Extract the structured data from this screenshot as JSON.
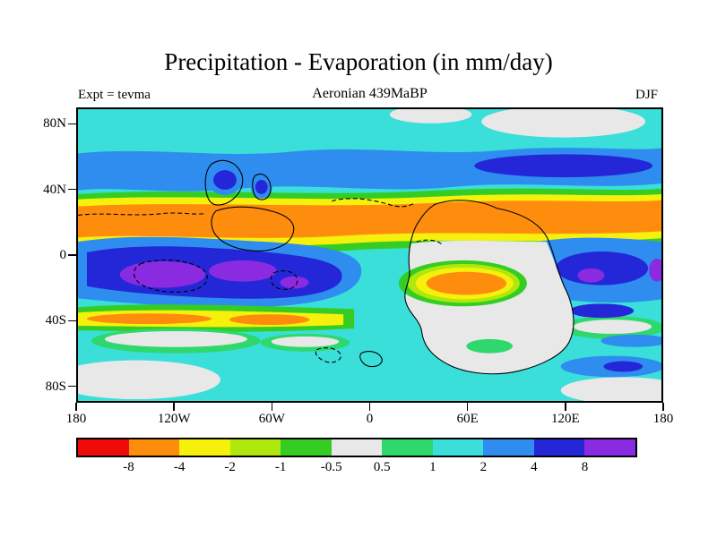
{
  "chart_data": {
    "type": "heatmap",
    "style": "filled-contour-map",
    "title": "Precipitation - Evaporation (in mm/day)",
    "header": {
      "experiment": "Expt = tevma",
      "subtitle": "Aeronian 439MaBP",
      "season": "DJF"
    },
    "map": {
      "projection": "equirectangular",
      "lon_range": [
        -180,
        180
      ],
      "lat_range": [
        -90,
        90
      ],
      "field_description": "P-E in mm/day: orange/yellow dry subtropical bands, blue/purple wet equatorial and midlatitude bands, cyan oceans, light gray continents and polar patches, black solid and dashed paleocoastlines"
    },
    "x_axis": {
      "ticks": [
        {
          "label": "180",
          "lon": -180
        },
        {
          "label": "120W",
          "lon": -120
        },
        {
          "label": "60W",
          "lon": -60
        },
        {
          "label": "0",
          "lon": 0
        },
        {
          "label": "60E",
          "lon": 60
        },
        {
          "label": "120E",
          "lon": 120
        },
        {
          "label": "180",
          "lon": 180
        }
      ]
    },
    "y_axis": {
      "ticks": [
        {
          "label": "80N",
          "lat": 80
        },
        {
          "label": "40N",
          "lat": 40
        },
        {
          "label": "0",
          "lat": 0
        },
        {
          "label": "40S",
          "lat": -40
        },
        {
          "label": "80S",
          "lat": -80
        }
      ]
    },
    "colorbar": {
      "levels": [
        "-8",
        "-4",
        "-2",
        "-1",
        "-0.5",
        "0.5",
        "1",
        "2",
        "4",
        "8"
      ],
      "palette": [
        "#ef0a0a",
        "#fe8d0e",
        "#f5f00c",
        "#aee80c",
        "#35cd23",
        "#e8e8e8",
        "#2fd86c",
        "#39dfd8",
        "#2f8df0",
        "#2427d8",
        "#8a2be2"
      ]
    }
  }
}
